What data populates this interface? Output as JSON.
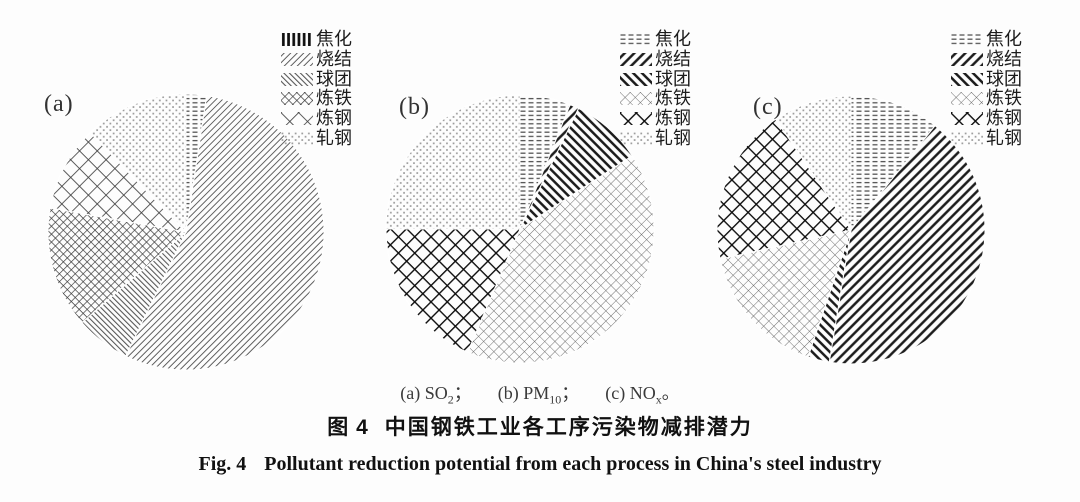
{
  "page": {
    "background": "#fdfdfd",
    "ink_color": "#222222"
  },
  "panels": [
    {
      "label": "(a)"
    },
    {
      "label": "(b)"
    },
    {
      "label": "(c)"
    }
  ],
  "caption": {
    "line1_items": [
      {
        "pre": "(a) SO",
        "sub": "2",
        "post": "；"
      },
      {
        "pre": "(b) PM",
        "sub": "10",
        "post": "；"
      },
      {
        "pre": "(c) NO",
        "sub": "x",
        "post": "。"
      }
    ],
    "line2_prefix": "图 4",
    "line2_text": "中国钢铁工业各工序污染物减排潜力",
    "line3_prefix": "Fig. 4",
    "line3_text": "Pollutant reduction potential from each process in China's steel industry"
  },
  "chart_data": [
    {
      "type": "pie",
      "name": "SO2",
      "panel": "(a)",
      "unit": "percent",
      "order": "clockwise-from-top",
      "labels": [
        "焦化",
        "烧结",
        "球团",
        "炼铁",
        "炼钢",
        "轧钢"
      ],
      "labels_en": [
        "coking",
        "sintering",
        "pelletizing",
        "ironmaking",
        "steelmaking",
        "rolling"
      ],
      "values": [
        2.4,
        54.8,
        6.4,
        14.2,
        10.0,
        12.2
      ],
      "patterns": [
        "hdash",
        "thinFwd",
        "thinBack",
        "denseCross",
        "bigX",
        "dots"
      ],
      "legend_patterns": [
        "vbars",
        "thinFwd",
        "thinBack",
        "denseCross",
        "bigX",
        "dots"
      ],
      "center": [
        186,
        232
      ],
      "radius": 138,
      "legend_position": "top-right"
    },
    {
      "type": "pie",
      "name": "PM10",
      "panel": "(b)",
      "unit": "percent",
      "order": "clockwise-from-top",
      "labels": [
        "焦化",
        "烧结",
        "球团",
        "炼铁",
        "炼钢",
        "轧钢"
      ],
      "labels_en": [
        "coking",
        "sintering",
        "pelletizing",
        "ironmaking",
        "steelmaking",
        "rolling"
      ],
      "values": [
        6.1,
        1.1,
        8.6,
        40.6,
        18.6,
        25.0
      ],
      "patterns": [
        "hdash",
        "boldFwd",
        "boldBack",
        "lattice",
        "boldX",
        "dots"
      ],
      "legend_patterns": [
        "hdash",
        "boldFwd",
        "boldBack",
        "lattice",
        "boldX",
        "dots"
      ],
      "center": [
        520,
        229
      ],
      "radius": 134,
      "legend_position": "top-right"
    },
    {
      "type": "pie",
      "name": "NOx",
      "panel": "(c)",
      "unit": "percent",
      "order": "clockwise-from-top",
      "labels": [
        "焦化",
        "烧结",
        "球团",
        "炼铁",
        "炼钢",
        "轧钢"
      ],
      "labels_en": [
        "coking",
        "sintering",
        "pelletizing",
        "ironmaking",
        "steelmaking",
        "rolling"
      ],
      "values": [
        10.8,
        41.8,
        2.6,
        16.3,
        19.0,
        9.5
      ],
      "patterns": [
        "hdash",
        "boldFwd",
        "boldBack",
        "lattice",
        "boldX",
        "dots"
      ],
      "legend_patterns": [
        "hdash",
        "boldFwd",
        "boldBack",
        "lattice",
        "boldX",
        "dots"
      ],
      "center": [
        851,
        230
      ],
      "radius": 134,
      "legend_position": "top-right"
    }
  ]
}
